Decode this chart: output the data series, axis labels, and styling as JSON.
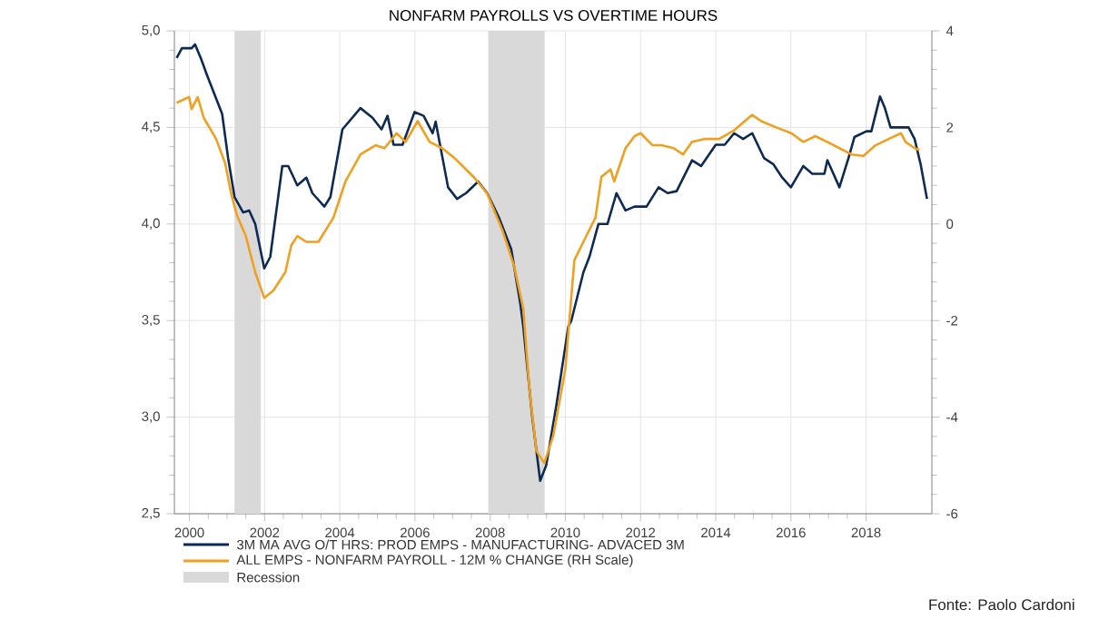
{
  "chart_data": {
    "type": "line",
    "title": "NONFARM PAYROLLS VS OVERTIME HOURS",
    "annotations": [
      "Fonte: Paolo Cardoni"
    ],
    "xlim": [
      1999.6,
      2019.75
    ],
    "xticks": [
      2000,
      2002,
      2004,
      2006,
      2008,
      2010,
      2012,
      2014,
      2016,
      2018
    ],
    "ylim": [
      2.5,
      5.0
    ],
    "yticks": [
      {
        "value": 2.5,
        "label": "2,5"
      },
      {
        "value": 3.0,
        "label": "3,0"
      },
      {
        "value": 3.5,
        "label": "3,5"
      },
      {
        "value": 4.0,
        "label": "4,0"
      },
      {
        "value": 4.5,
        "label": "4,5"
      },
      {
        "value": 5.0,
        "label": "5,0"
      }
    ],
    "y2lim": [
      -6,
      4
    ],
    "y2ticks": [
      -6,
      -4,
      -2,
      0,
      2,
      4
    ],
    "grid": true,
    "legend": "bottom",
    "bands": [
      {
        "axis": "x",
        "from": 2001.2,
        "to": 2001.9,
        "label": "Recession",
        "color": "#d9d9d9"
      },
      {
        "axis": "x",
        "from": 2007.95,
        "to": 2009.45,
        "color": "#d9d9d9"
      }
    ],
    "series": [
      {
        "name": "3M MA AVG O/T HRS: PROD EMPS - MANUFACTURING- ADVACED 3M",
        "color": "#0d2a55",
        "axis": "y",
        "x": [
          1999.66,
          1999.8,
          2000.06,
          2000.15,
          2000.3,
          2000.47,
          2000.63,
          2000.87,
          2001.03,
          2001.2,
          2001.43,
          2001.59,
          2001.75,
          2001.99,
          2002.15,
          2002.47,
          2002.63,
          2002.87,
          2003.11,
          2003.27,
          2003.59,
          2003.75,
          2004.07,
          2004.55,
          2004.87,
          2005.11,
          2005.27,
          2005.43,
          2005.67,
          2005.99,
          2006.23,
          2006.47,
          2006.55,
          2006.88,
          2007.12,
          2007.36,
          2007.68,
          2007.92,
          2008.24,
          2008.56,
          2008.8,
          2008.88,
          2009.12,
          2009.33,
          2009.49,
          2009.76,
          2010.08,
          2010.16,
          2010.48,
          2010.64,
          2010.88,
          2011.12,
          2011.36,
          2011.6,
          2011.84,
          2012.16,
          2012.48,
          2012.72,
          2012.96,
          2013.37,
          2013.61,
          2014.0,
          2014.24,
          2014.49,
          2014.73,
          2014.97,
          2015.29,
          2015.53,
          2015.77,
          2016.0,
          2016.33,
          2016.57,
          2016.89,
          2016.97,
          2017.29,
          2017.53,
          2017.69,
          2018.01,
          2018.14,
          2018.37,
          2018.5,
          2018.65,
          2019.13,
          2019.29,
          2019.45,
          2019.62
        ],
        "values": [
          4.86,
          4.91,
          4.91,
          4.93,
          4.86,
          4.77,
          4.69,
          4.57,
          4.34,
          4.14,
          4.06,
          4.07,
          4.0,
          3.77,
          3.83,
          4.3,
          4.3,
          4.2,
          4.24,
          4.16,
          4.09,
          4.14,
          4.49,
          4.6,
          4.55,
          4.49,
          4.56,
          4.41,
          4.41,
          4.58,
          4.56,
          4.47,
          4.53,
          4.19,
          4.13,
          4.16,
          4.22,
          4.16,
          4.03,
          3.87,
          3.59,
          3.47,
          3.0,
          2.67,
          2.75,
          3.06,
          3.47,
          3.5,
          3.75,
          3.83,
          4.0,
          4.0,
          4.16,
          4.07,
          4.09,
          4.09,
          4.19,
          4.16,
          4.17,
          4.33,
          4.3,
          4.41,
          4.41,
          4.47,
          4.44,
          4.47,
          4.34,
          4.31,
          4.24,
          4.19,
          4.3,
          4.26,
          4.26,
          4.33,
          4.19,
          4.34,
          4.45,
          4.48,
          4.48,
          4.66,
          4.6,
          4.5,
          4.5,
          4.44,
          4.31,
          4.13
        ]
      },
      {
        "name": "ALL EMPS - NONFARM PAYROLL - 12M % CHANGE (RH Scale)",
        "color": "#f0a020",
        "axis": "y2",
        "x": [
          1999.66,
          1999.99,
          2000.06,
          2000.22,
          2000.38,
          2000.71,
          2000.95,
          2001.11,
          2001.26,
          2001.5,
          2001.75,
          2001.99,
          2002.23,
          2002.55,
          2002.71,
          2002.87,
          2003.11,
          2003.43,
          2003.83,
          2004.15,
          2004.55,
          2004.95,
          2005.19,
          2005.51,
          2005.75,
          2006.07,
          2006.39,
          2006.72,
          2007.03,
          2007.28,
          2007.6,
          2007.92,
          2008.32,
          2008.64,
          2008.88,
          2009.04,
          2009.23,
          2009.44,
          2009.68,
          2010.0,
          2010.24,
          2010.48,
          2010.8,
          2010.96,
          2011.2,
          2011.3,
          2011.6,
          2011.84,
          2012.0,
          2012.32,
          2012.56,
          2012.88,
          2013.13,
          2013.37,
          2013.69,
          2014.09,
          2014.49,
          2014.97,
          2015.21,
          2015.61,
          2016.01,
          2016.33,
          2016.65,
          2016.97,
          2017.29,
          2017.61,
          2017.93,
          2018.25,
          2018.65,
          2018.93,
          2019.05,
          2019.29,
          2019.42
        ],
        "values": [
          2.51,
          2.63,
          2.38,
          2.63,
          2.2,
          1.76,
          1.26,
          0.63,
          0.19,
          -0.25,
          -1.0,
          -1.53,
          -1.38,
          -1.0,
          -0.44,
          -0.25,
          -0.37,
          -0.37,
          0.13,
          0.88,
          1.44,
          1.63,
          1.57,
          1.88,
          1.7,
          2.13,
          1.7,
          1.57,
          1.38,
          1.19,
          0.94,
          0.63,
          -0.12,
          -0.88,
          -1.75,
          -3.38,
          -4.7,
          -4.95,
          -4.38,
          -3.0,
          -0.75,
          -0.37,
          0.13,
          0.98,
          1.13,
          0.88,
          1.57,
          1.82,
          1.88,
          1.63,
          1.63,
          1.57,
          1.44,
          1.7,
          1.76,
          1.76,
          1.94,
          2.26,
          2.13,
          2.0,
          1.88,
          1.7,
          1.82,
          1.7,
          1.57,
          1.44,
          1.41,
          1.63,
          1.78,
          1.88,
          1.7,
          1.57,
          1.53
        ]
      }
    ]
  }
}
